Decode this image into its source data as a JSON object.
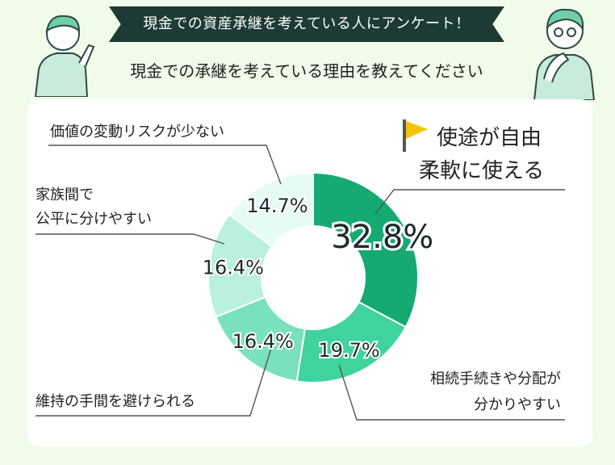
{
  "header": {
    "banner": "現金での資産承継を考えている人にアンケート！",
    "subtitle": "現金での承継を考えている理由を教えてください"
  },
  "chart_data": {
    "type": "donut",
    "title": "現金での承継を考えている理由を教えてください",
    "start_angle_deg": 0,
    "slices": [
      {
        "label_lines": [
          "使途が自由",
          "柔軟に使える"
        ],
        "value": 32.8,
        "value_label": "32.8%",
        "color": "#14aa72"
      },
      {
        "label_lines": [
          "相続手続きや分配が",
          "分かりやすい"
        ],
        "value": 19.7,
        "value_label": "19.7%",
        "color": "#3fd39e"
      },
      {
        "label_lines": [
          "維持の手間を避けられる"
        ],
        "value": 16.4,
        "value_label": "16.4%",
        "color": "#79e2bc"
      },
      {
        "label_lines": [
          "家族間で",
          "公平に分けやすい"
        ],
        "value": 16.4,
        "value_label": "16.4%",
        "color": "#b9f1dc"
      },
      {
        "label_lines": [
          "価値の変動リスクが少ない"
        ],
        "value": 14.7,
        "value_label": "14.7%",
        "color": "#e6fbf3"
      }
    ]
  },
  "colors": {
    "background": "#f1fbe9",
    "banner": "#1d3a34",
    "flag": "#f5c400",
    "leader_line": "#555555",
    "person_fill": "#c9ebdc",
    "person_stroke": "#2c4a44"
  }
}
